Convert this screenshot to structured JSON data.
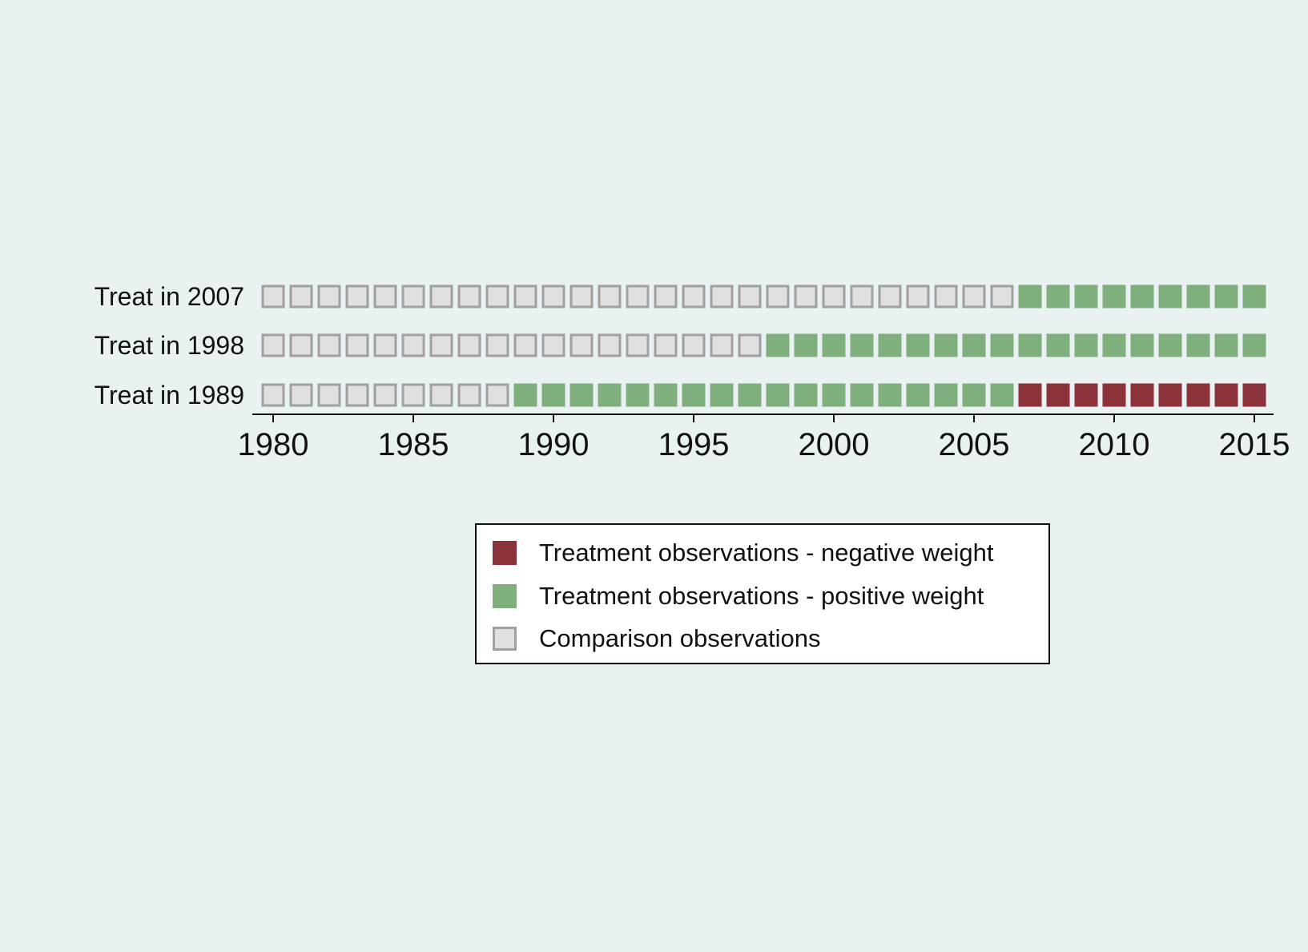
{
  "chart_data": {
    "type": "heatmap",
    "x_start": 1980,
    "x_end": 2015,
    "x_ticks": [
      1980,
      1985,
      1990,
      1995,
      2000,
      2005,
      2010,
      2015
    ],
    "rows": [
      {
        "label": "Treat in 2007",
        "treat_year": 2007,
        "negative_from": null
      },
      {
        "label": "Treat in 1998",
        "treat_year": 1998,
        "negative_from": null
      },
      {
        "label": "Treat in 1989",
        "treat_year": 1989,
        "negative_from": 2007
      }
    ],
    "categories": {
      "negative": {
        "label": "Treatment observations - negative weight",
        "color": "#8b323a"
      },
      "positive": {
        "label": "Treatment observations - positive weight",
        "color": "#7faf7c"
      },
      "comparison": {
        "label": "Comparison observations",
        "color": "#e0e0e0",
        "border": "#a0a0a0"
      }
    },
    "legend_order": [
      "negative",
      "positive",
      "comparison"
    ],
    "legend_position": "bottom-center"
  }
}
